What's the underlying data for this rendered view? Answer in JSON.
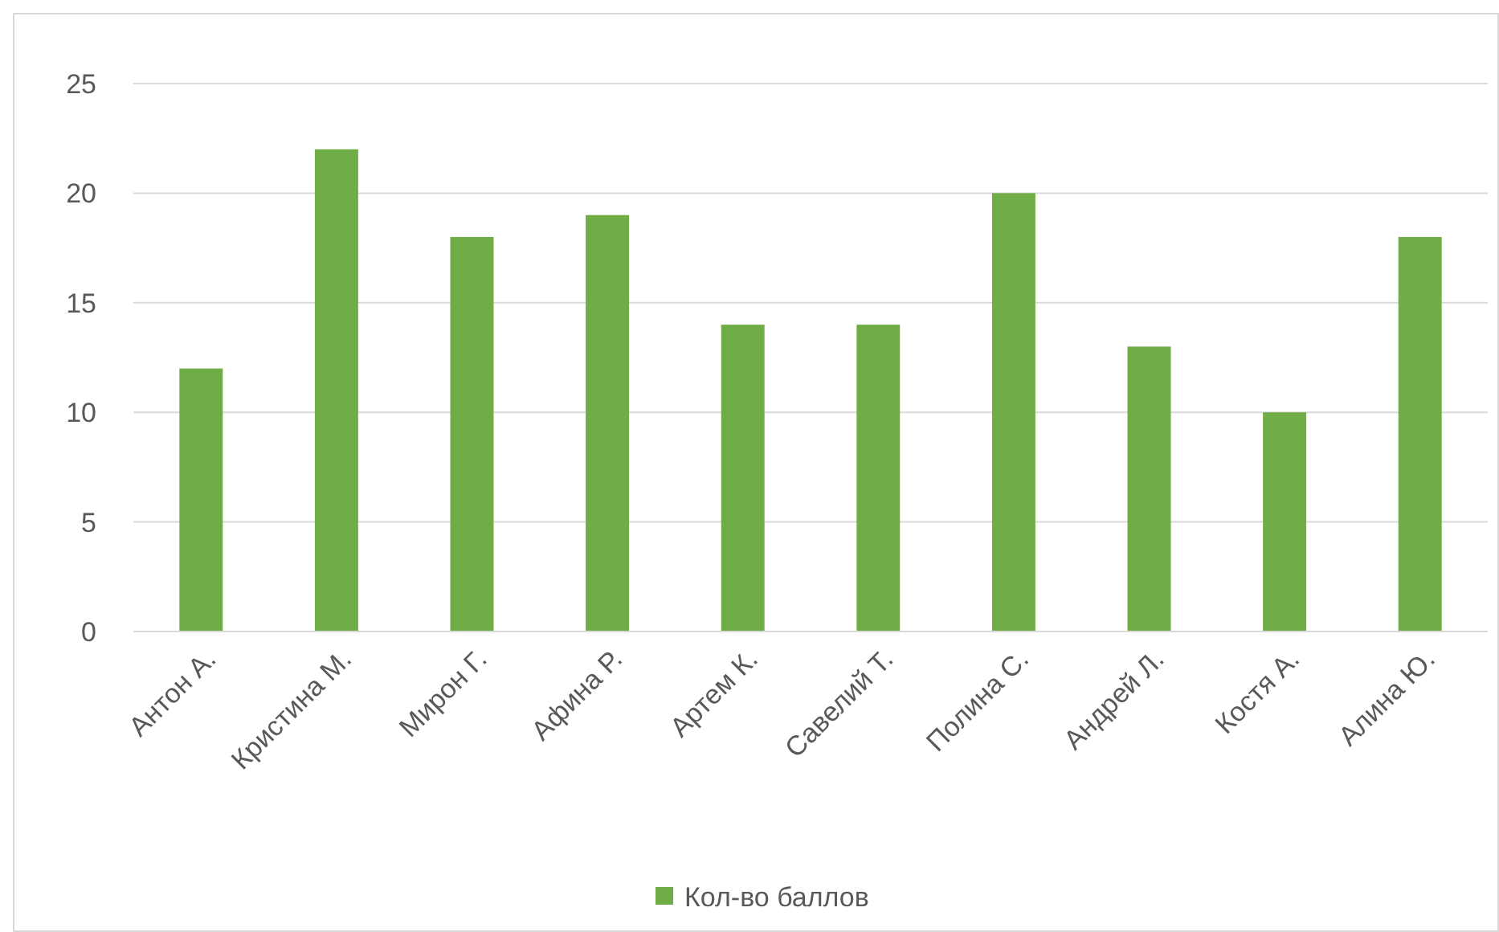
{
  "chart_data": {
    "type": "bar",
    "categories": [
      "Антон А.",
      "Кристина М.",
      "Мирон Г.",
      "Афина Р.",
      "Артем К.",
      "Савелий Т.",
      "Полина С.",
      "Андрей Л.",
      "Костя А.",
      "Алина Ю."
    ],
    "series": [
      {
        "name": "Кол-во баллов",
        "color": "#70ad47",
        "values": [
          12,
          22,
          18,
          19,
          14,
          14,
          20,
          13,
          10,
          18
        ]
      }
    ],
    "ylim": [
      0,
      25
    ],
    "yticks": [
      0,
      5,
      10,
      15,
      20,
      25
    ],
    "grid": "y",
    "legend": "bottom"
  }
}
